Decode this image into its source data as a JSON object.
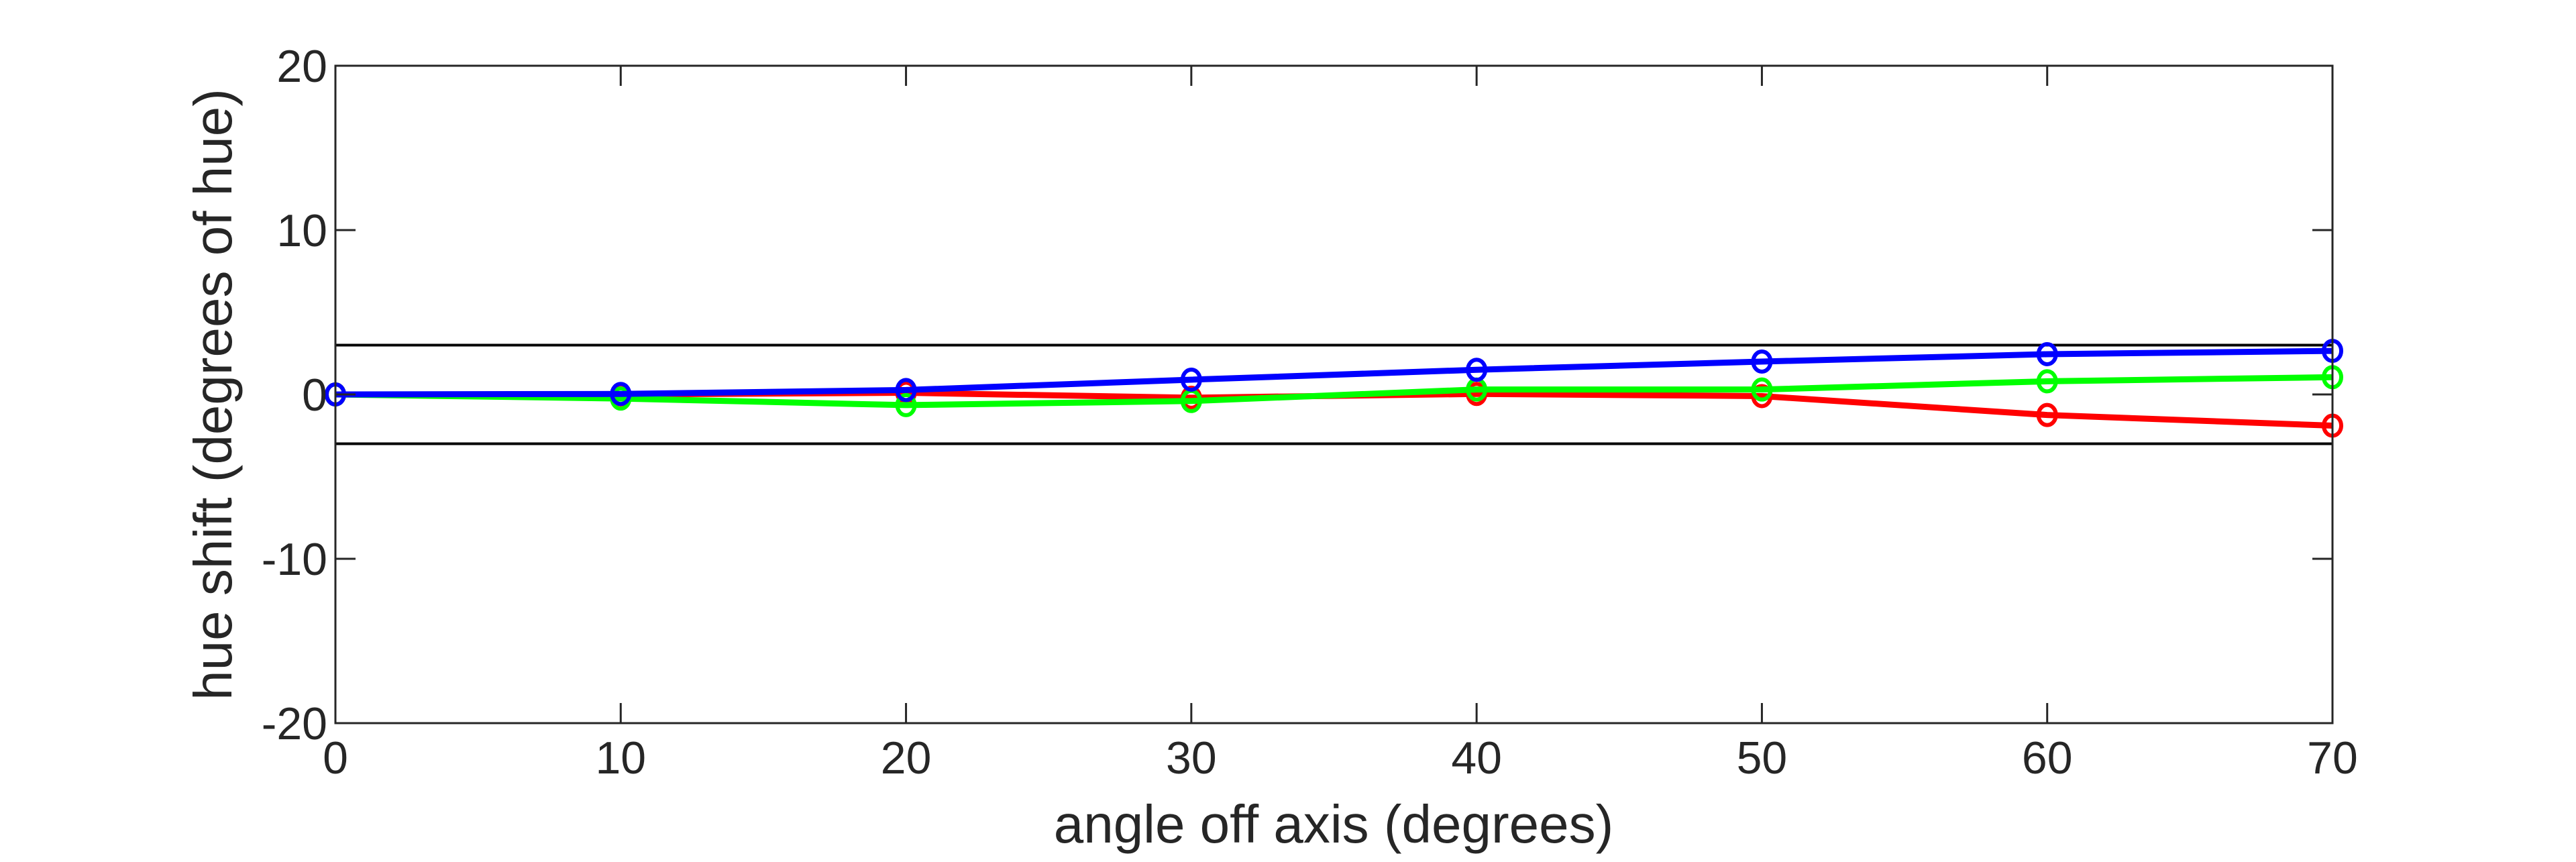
{
  "chart_data": {
    "type": "line",
    "title": "",
    "xlabel": "angle off axis (degrees)",
    "ylabel": "hue shift (degrees of hue)",
    "xlim": [
      0,
      70
    ],
    "ylim": [
      -20,
      20
    ],
    "xticks": [
      "0",
      "10",
      "20",
      "30",
      "40",
      "50",
      "60",
      "70"
    ],
    "yticks": [
      "-20",
      "-10",
      "0",
      "10",
      "20"
    ],
    "grid": false,
    "x": [
      0,
      10,
      20,
      30,
      40,
      50,
      60,
      70
    ],
    "reference_lines": [
      3,
      -3
    ],
    "series": [
      {
        "color": "#ff0000",
        "values": [
          0,
          0,
          0.1,
          -0.2,
          0.03,
          -0.1,
          -1.25,
          -1.9
        ]
      },
      {
        "color": "#00ff00",
        "values": [
          0,
          -0.25,
          -0.65,
          -0.4,
          0.3,
          0.3,
          0.8,
          1.05
        ]
      },
      {
        "color": "#0000ff",
        "values": [
          0,
          0.03,
          0.27,
          0.9,
          1.5,
          2.0,
          2.45,
          2.65
        ]
      }
    ]
  }
}
